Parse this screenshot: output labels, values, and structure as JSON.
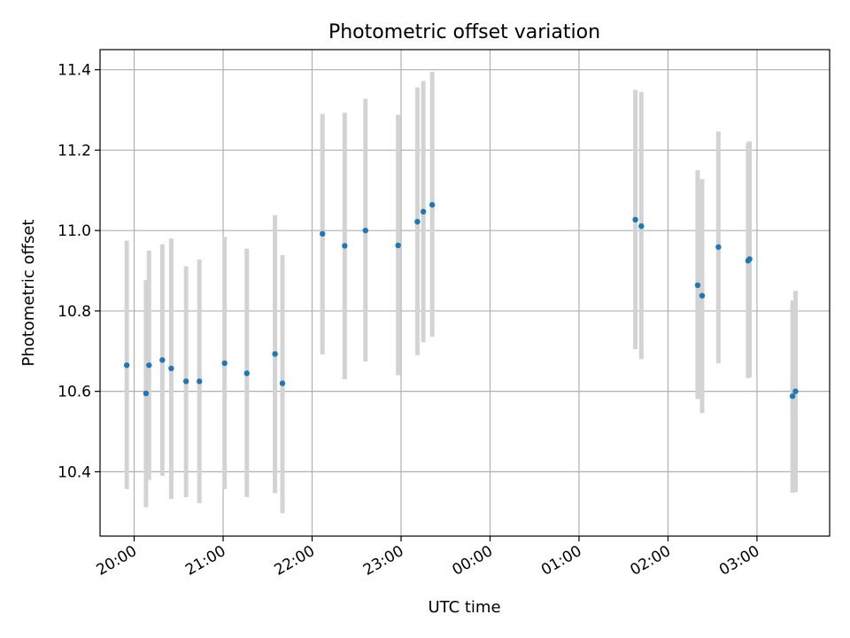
{
  "chart_data": {
    "type": "scatter",
    "title": "Photometric offset variation",
    "xlabel": "UTC time",
    "ylabel": "Photometric offset",
    "x_unit": "UTC time",
    "x_range": [
      "19:37",
      "03:49"
    ],
    "x_day_rollover": "00:00",
    "ylim": [
      10.24,
      11.45
    ],
    "grid": true,
    "x_ticks": [
      "20:00",
      "21:00",
      "22:00",
      "23:00",
      "00:00",
      "01:00",
      "02:00",
      "03:00"
    ],
    "y_ticks": [
      10.4,
      10.6,
      10.8,
      11.0,
      11.2,
      11.4
    ],
    "y_tick_labels": [
      "10.4",
      "10.6",
      "10.8",
      "11.0",
      "11.2",
      "11.4"
    ],
    "marker_color": "#1f77b4",
    "errorbar_color": "#d3d3d3",
    "points": [
      {
        "x": "19:55",
        "y": 10.665,
        "yerr_low": 10.357,
        "yerr_high": 10.975
      },
      {
        "x": "20:08",
        "y": 10.595,
        "yerr_low": 10.312,
        "yerr_high": 10.877
      },
      {
        "x": "20:10",
        "y": 10.665,
        "yerr_low": 10.38,
        "yerr_high": 10.95
      },
      {
        "x": "20:19",
        "y": 10.678,
        "yerr_low": 10.39,
        "yerr_high": 10.966
      },
      {
        "x": "20:25",
        "y": 10.657,
        "yerr_low": 10.332,
        "yerr_high": 10.98
      },
      {
        "x": "20:35",
        "y": 10.625,
        "yerr_low": 10.337,
        "yerr_high": 10.911
      },
      {
        "x": "20:44",
        "y": 10.625,
        "yerr_low": 10.322,
        "yerr_high": 10.928
      },
      {
        "x": "21:01",
        "y": 10.67,
        "yerr_low": 10.357,
        "yerr_high": 10.984
      },
      {
        "x": "21:16",
        "y": 10.645,
        "yerr_low": 10.337,
        "yerr_high": 10.955
      },
      {
        "x": "21:35",
        "y": 10.693,
        "yerr_low": 10.347,
        "yerr_high": 11.038
      },
      {
        "x": "21:40",
        "y": 10.62,
        "yerr_low": 10.297,
        "yerr_high": 10.939
      },
      {
        "x": "22:07",
        "y": 10.992,
        "yerr_low": 10.692,
        "yerr_high": 11.29
      },
      {
        "x": "22:22",
        "y": 10.962,
        "yerr_low": 10.63,
        "yerr_high": 11.293
      },
      {
        "x": "22:36",
        "y": 11.0,
        "yerr_low": 10.674,
        "yerr_high": 11.328
      },
      {
        "x": "22:58",
        "y": 10.963,
        "yerr_low": 10.64,
        "yerr_high": 11.288
      },
      {
        "x": "23:11",
        "y": 11.022,
        "yerr_low": 10.69,
        "yerr_high": 11.356
      },
      {
        "x": "23:15",
        "y": 11.047,
        "yerr_low": 10.722,
        "yerr_high": 11.372
      },
      {
        "x": "23:21",
        "y": 11.064,
        "yerr_low": 10.736,
        "yerr_high": 11.395
      },
      {
        "x": "01:38",
        "y": 11.027,
        "yerr_low": 10.705,
        "yerr_high": 11.35
      },
      {
        "x": "01:42",
        "y": 11.011,
        "yerr_low": 10.68,
        "yerr_high": 11.345
      },
      {
        "x": "02:20",
        "y": 10.864,
        "yerr_low": 10.581,
        "yerr_high": 11.15
      },
      {
        "x": "02:23",
        "y": 10.838,
        "yerr_low": 10.546,
        "yerr_high": 11.128
      },
      {
        "x": "02:34",
        "y": 10.959,
        "yerr_low": 10.67,
        "yerr_high": 11.246
      },
      {
        "x": "02:54",
        "y": 10.925,
        "yerr_low": 10.633,
        "yerr_high": 11.218
      },
      {
        "x": "02:55",
        "y": 10.929,
        "yerr_low": 10.635,
        "yerr_high": 11.222
      },
      {
        "x": "03:24",
        "y": 10.588,
        "yerr_low": 10.348,
        "yerr_high": 10.826
      },
      {
        "x": "03:26",
        "y": 10.6,
        "yerr_low": 10.349,
        "yerr_high": 10.85
      }
    ]
  }
}
